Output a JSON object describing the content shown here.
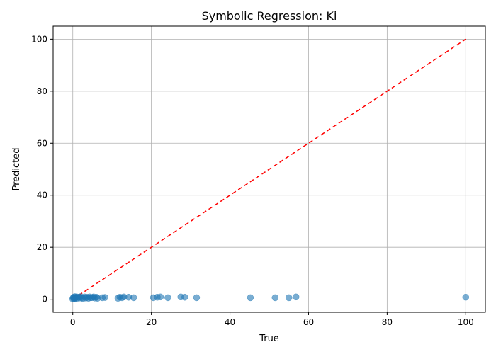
{
  "chart_data": {
    "type": "scatter",
    "title": "Symbolic Regression: Ki",
    "xlabel": "True",
    "ylabel": "Predicted",
    "xlim": [
      -5,
      105
    ],
    "ylim": [
      -5,
      105
    ],
    "xticks": [
      0,
      20,
      40,
      60,
      80,
      100
    ],
    "yticks": [
      0,
      20,
      40,
      60,
      80,
      100
    ],
    "grid": true,
    "colors": {
      "points": "#1f77b4",
      "reference_line": "#ff0000",
      "grid": "#b0b0b0"
    },
    "reference_line": {
      "style": "dashed",
      "from": [
        0,
        0
      ],
      "to": [
        100,
        100
      ]
    },
    "series": [
      {
        "points": [
          [
            0.0,
            0.1
          ],
          [
            0.1,
            0.5
          ],
          [
            0.2,
            0.8
          ],
          [
            0.3,
            0.2
          ],
          [
            0.4,
            0.6
          ],
          [
            0.5,
            1.0
          ],
          [
            0.6,
            0.3
          ],
          [
            0.8,
            0.7
          ],
          [
            1.0,
            0.9
          ],
          [
            1.2,
            0.4
          ],
          [
            1.5,
            0.8
          ],
          [
            1.8,
            0.5
          ],
          [
            2.0,
            1.0
          ],
          [
            2.3,
            0.6
          ],
          [
            2.6,
            0.3
          ],
          [
            3.0,
            0.9
          ],
          [
            3.3,
            0.5
          ],
          [
            3.6,
            0.8
          ],
          [
            4.0,
            0.4
          ],
          [
            4.3,
            0.9
          ],
          [
            4.6,
            0.6
          ],
          [
            5.0,
            0.7
          ],
          [
            5.3,
            0.9
          ],
          [
            5.6,
            0.5
          ],
          [
            6.0,
            0.8
          ],
          [
            6.3,
            0.4
          ],
          [
            7.5,
            0.6
          ],
          [
            8.2,
            0.7
          ],
          [
            11.5,
            0.4
          ],
          [
            12.0,
            0.8
          ],
          [
            12.5,
            0.6
          ],
          [
            13.0,
            0.9
          ],
          [
            14.2,
            0.8
          ],
          [
            15.5,
            0.6
          ],
          [
            20.5,
            0.6
          ],
          [
            21.5,
            0.8
          ],
          [
            22.3,
            0.9
          ],
          [
            24.2,
            0.6
          ],
          [
            27.5,
            0.9
          ],
          [
            28.5,
            0.8
          ],
          [
            31.5,
            0.6
          ],
          [
            45.2,
            0.6
          ],
          [
            51.5,
            0.6
          ],
          [
            55.0,
            0.6
          ],
          [
            56.8,
            0.9
          ],
          [
            100.0,
            0.8
          ]
        ]
      }
    ]
  }
}
